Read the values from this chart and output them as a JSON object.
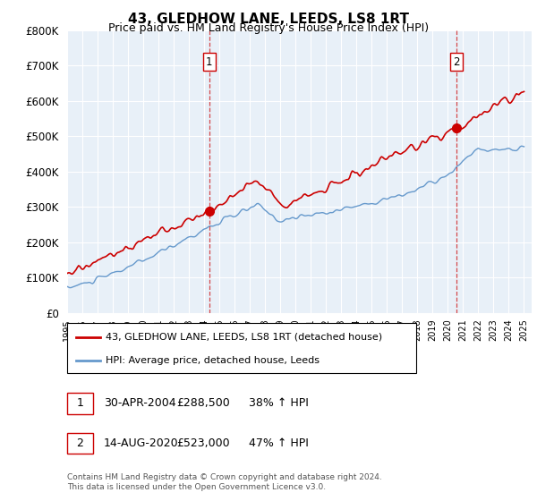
{
  "title": "43, GLEDHOW LANE, LEEDS, LS8 1RT",
  "subtitle": "Price paid vs. HM Land Registry's House Price Index (HPI)",
  "red_label": "43, GLEDHOW LANE, LEEDS, LS8 1RT (detached house)",
  "blue_label": "HPI: Average price, detached house, Leeds",
  "annotation1_date": "30-APR-2004",
  "annotation1_price": "£288,500",
  "annotation1_hpi": "38% ↑ HPI",
  "annotation2_date": "14-AUG-2020",
  "annotation2_price": "£523,000",
  "annotation2_hpi": "47% ↑ HPI",
  "footer": "Contains HM Land Registry data © Crown copyright and database right 2024.\nThis data is licensed under the Open Government Licence v3.0.",
  "ylim": [
    0,
    800000
  ],
  "yticks": [
    0,
    100000,
    200000,
    300000,
    400000,
    500000,
    600000,
    700000,
    800000
  ],
  "red_color": "#cc0000",
  "blue_color": "#6699cc",
  "dashed_color": "#cc0000",
  "chart_bg_color": "#e8f0f8",
  "background_color": "#ffffff",
  "grid_color": "#ffffff",
  "sale1_year": 2004.33,
  "sale1_price": 288500,
  "sale2_year": 2020.58,
  "sale2_price": 523000
}
